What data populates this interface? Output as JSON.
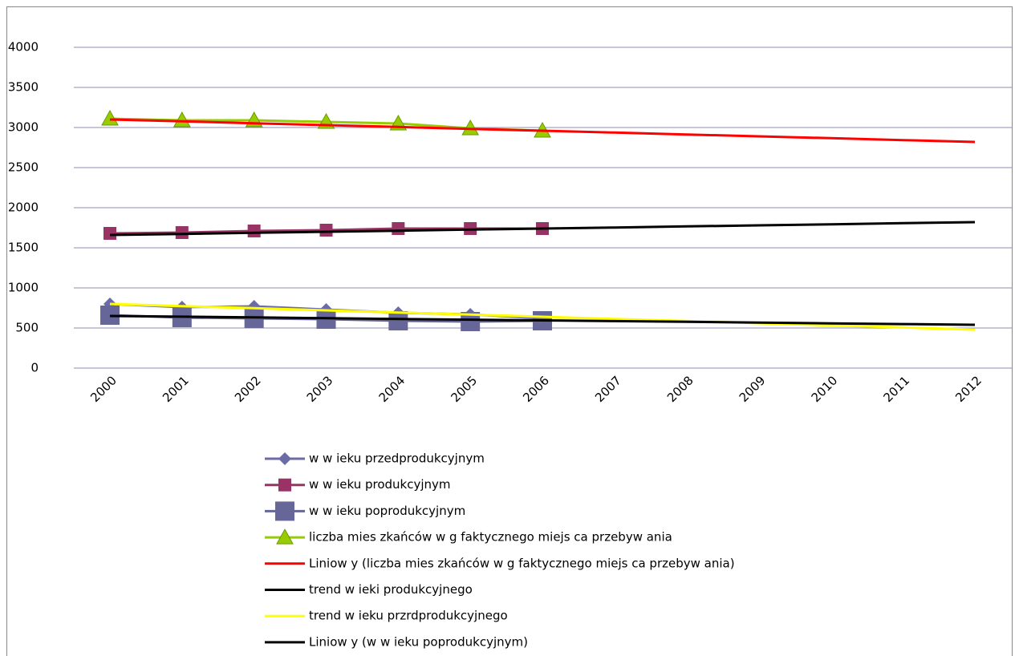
{
  "chart_data": {
    "type": "line",
    "categories": [
      "2000",
      "2001",
      "2002",
      "2003",
      "2004",
      "2005",
      "2006",
      "2007",
      "2008",
      "2009",
      "2010",
      "2011",
      "2012"
    ],
    "ylim": [
      0,
      4000
    ],
    "yticks": [
      0,
      500,
      1000,
      1500,
      2000,
      2500,
      3000,
      3500,
      4000
    ],
    "grid": true,
    "series": [
      {
        "name": "w  w ieku przedprodukcyjnym",
        "color": "#6b6ba6",
        "marker": "diamond",
        "values": [
          800,
          760,
          770,
          730,
          690,
          670,
          620,
          null,
          null,
          null,
          null,
          null,
          null
        ]
      },
      {
        "name": "w  w ieku produkcyjnym",
        "color": "#993366",
        "marker": "square",
        "values": [
          1680,
          1690,
          1710,
          1720,
          1740,
          1740,
          1740,
          null,
          null,
          null,
          null,
          null,
          null
        ]
      },
      {
        "name": "w  w ieku poprodukcyjnym",
        "color": "#666699",
        "marker": "bigsquare",
        "values": [
          660,
          630,
          620,
          610,
          590,
          580,
          590,
          null,
          null,
          null,
          null,
          null,
          null
        ]
      },
      {
        "name": "liczba mies zkańców  w g faktycznego miejs ca przebyw ania",
        "color": "#99cc00",
        "marker": "triangle",
        "values": [
          3110,
          3090,
          3090,
          3070,
          3050,
          2990,
          2960,
          null,
          null,
          null,
          null,
          null,
          null
        ]
      },
      {
        "name": "Liniow y (liczba mies zkańców  w g faktycznego miejs ca przebyw ania)",
        "color": "#ff0000",
        "marker": null,
        "values": [
          3100,
          3077,
          3053,
          3030,
          3007,
          2983,
          2960,
          2937,
          2913,
          2890,
          2867,
          2843,
          2820
        ]
      },
      {
        "name": "trend w ieki produkcyjnego",
        "color": "#000000",
        "marker": null,
        "values": [
          1660,
          1673,
          1687,
          1700,
          1713,
          1727,
          1740,
          1753,
          1767,
          1780,
          1793,
          1807,
          1820
        ]
      },
      {
        "name": "trend w ieku przrdprodukcyjnego",
        "color": "#ffff00",
        "marker": null,
        "values": [
          800,
          773,
          747,
          720,
          693,
          667,
          640,
          613,
          587,
          560,
          533,
          507,
          480
        ]
      },
      {
        "name": "Liniow y (w  w ieku poprodukcyjnym)",
        "color": "#000000",
        "marker": null,
        "values": [
          650,
          641,
          632,
          623,
          613,
          604,
          595,
          586,
          577,
          568,
          558,
          549,
          540
        ]
      }
    ]
  }
}
